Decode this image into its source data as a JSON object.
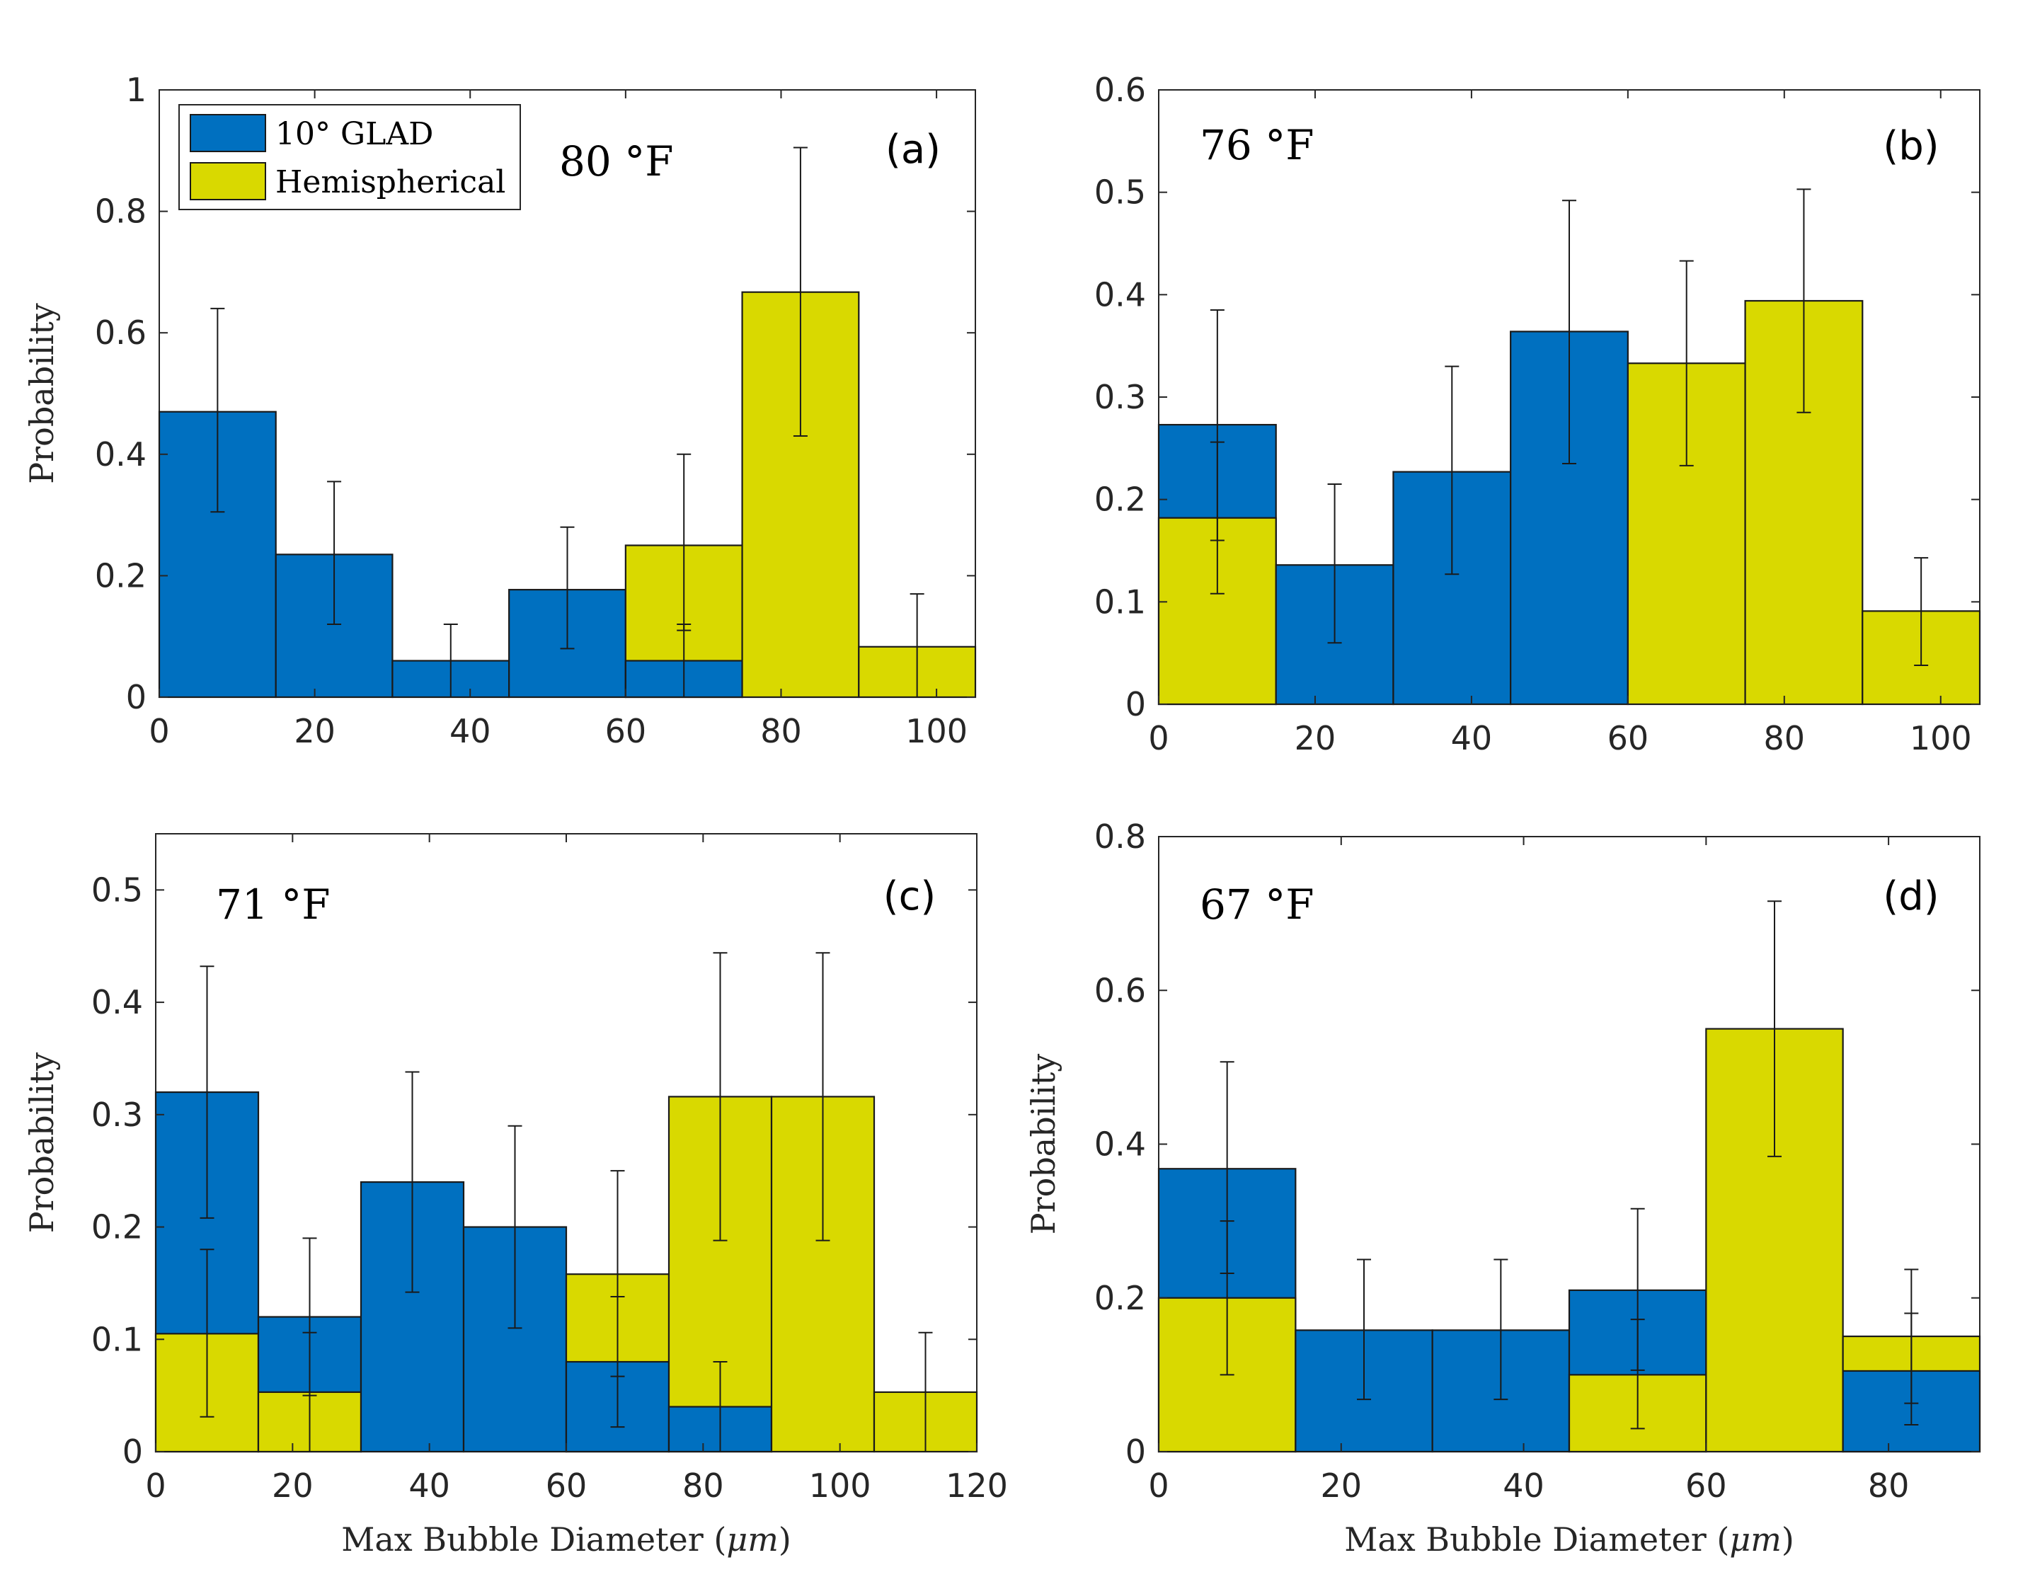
{
  "figure": {
    "series_names": [
      "10° GLAD",
      "Hemispherical"
    ],
    "colors": {
      "glad": "#0070C0",
      "hemi": "#D9D900"
    },
    "xlabel_prefix": "Max Bubble Diameter (",
    "xlabel_unit": "μm",
    "xlabel_suffix": ")",
    "ylabel": "Probability"
  },
  "chart_data": [
    {
      "type": "bar",
      "panel": "(a)",
      "temperature": "80 °F",
      "bin_width": 15,
      "xlim": [
        0,
        105
      ],
      "ylim": [
        0,
        1
      ],
      "xticks": [
        0,
        20,
        40,
        60,
        80,
        100
      ],
      "yticks": [
        "0",
        "0.2",
        "0.4",
        "0.6",
        "0.8",
        "1"
      ],
      "ytick_values": [
        0,
        0.2,
        0.4,
        0.6,
        0.8,
        1
      ],
      "legend": true,
      "series": [
        {
          "name": "10° GLAD",
          "bins": [
            0,
            15,
            30,
            45,
            60,
            75,
            90
          ],
          "values": [
            0.47,
            0.235,
            0.06,
            0.177,
            0.06,
            0,
            0
          ],
          "err_lo": [
            0.305,
            0.12,
            0,
            0.08,
            0,
            0,
            0
          ],
          "err_hi": [
            0.64,
            0.355,
            0.12,
            0.28,
            0.12,
            0,
            0
          ]
        },
        {
          "name": "Hemispherical",
          "bins": [
            0,
            15,
            30,
            45,
            60,
            75,
            90
          ],
          "values": [
            0,
            0,
            0,
            0,
            0.25,
            0.667,
            0.083
          ],
          "err_lo": [
            0,
            0,
            0,
            0,
            0.11,
            0.43,
            0
          ],
          "err_hi": [
            0,
            0,
            0,
            0,
            0.4,
            0.905,
            0.17
          ]
        }
      ]
    },
    {
      "type": "bar",
      "panel": "(b)",
      "temperature": "76 °F",
      "bin_width": 15,
      "xlim": [
        0,
        105
      ],
      "ylim": [
        0,
        0.6
      ],
      "xticks": [
        0,
        20,
        40,
        60,
        80,
        100
      ],
      "yticks": [
        "0",
        "0.1",
        "0.2",
        "0.3",
        "0.4",
        "0.5",
        "0.6"
      ],
      "ytick_values": [
        0,
        0.1,
        0.2,
        0.3,
        0.4,
        0.5,
        0.6
      ],
      "legend": false,
      "series": [
        {
          "name": "10° GLAD",
          "bins": [
            0,
            15,
            30,
            45,
            60,
            75,
            90
          ],
          "values": [
            0.273,
            0.136,
            0.227,
            0.364,
            0,
            0,
            0
          ],
          "err_lo": [
            0.16,
            0.06,
            0.127,
            0.235,
            0,
            0,
            0
          ],
          "err_hi": [
            0.385,
            0.215,
            0.33,
            0.492,
            0,
            0,
            0
          ]
        },
        {
          "name": "Hemispherical",
          "bins": [
            0,
            15,
            30,
            45,
            60,
            75,
            90
          ],
          "values": [
            0.182,
            0,
            0,
            0,
            0.333,
            0.394,
            0.091
          ],
          "err_lo": [
            0.108,
            0,
            0,
            0,
            0.233,
            0.285,
            0.038
          ],
          "err_hi": [
            0.256,
            0,
            0,
            0,
            0.433,
            0.503,
            0.143
          ]
        }
      ]
    },
    {
      "type": "bar",
      "panel": "(c)",
      "temperature": "71 °F",
      "bin_width": 15,
      "xlim": [
        0,
        120
      ],
      "ylim": [
        0,
        0.55
      ],
      "xticks": [
        0,
        20,
        40,
        60,
        80,
        100,
        120
      ],
      "yticks": [
        "0",
        "0.1",
        "0.2",
        "0.3",
        "0.4",
        "0.5"
      ],
      "ytick_values": [
        0,
        0.1,
        0.2,
        0.3,
        0.4,
        0.5
      ],
      "legend": false,
      "series": [
        {
          "name": "10° GLAD",
          "bins": [
            0,
            15,
            30,
            45,
            60,
            75,
            90,
            105
          ],
          "values": [
            0.32,
            0.12,
            0.24,
            0.2,
            0.08,
            0.04,
            0,
            0
          ],
          "err_lo": [
            0.208,
            0.05,
            0.142,
            0.11,
            0.022,
            0,
            0,
            0
          ],
          "err_hi": [
            0.432,
            0.19,
            0.338,
            0.29,
            0.138,
            0.08,
            0,
            0
          ]
        },
        {
          "name": "Hemispherical",
          "bins": [
            0,
            15,
            30,
            45,
            60,
            75,
            90,
            105
          ],
          "values": [
            0.105,
            0.053,
            0,
            0,
            0.158,
            0.316,
            0.316,
            0.053
          ],
          "err_lo": [
            0.031,
            0,
            0,
            0,
            0.067,
            0.188,
            0.188,
            0
          ],
          "err_hi": [
            0.18,
            0.106,
            0,
            0,
            0.25,
            0.444,
            0.444,
            0.106
          ]
        }
      ]
    },
    {
      "type": "bar",
      "panel": "(d)",
      "temperature": "67 °F",
      "bin_width": 15,
      "xlim": [
        0,
        90
      ],
      "ylim": [
        0,
        0.8
      ],
      "xticks": [
        0,
        20,
        40,
        60,
        80
      ],
      "yticks": [
        "0",
        "0.2",
        "0.4",
        "0.6",
        "0.8"
      ],
      "ytick_values": [
        0,
        0.2,
        0.4,
        0.6,
        0.8
      ],
      "legend": false,
      "series": [
        {
          "name": "10° GLAD",
          "bins": [
            0,
            15,
            30,
            45,
            60,
            75
          ],
          "values": [
            0.368,
            0.158,
            0.158,
            0.21,
            0,
            0.105
          ],
          "err_lo": [
            0.232,
            0.068,
            0.068,
            0.106,
            0,
            0.035
          ],
          "err_hi": [
            0.507,
            0.25,
            0.25,
            0.316,
            0,
            0.18
          ]
        },
        {
          "name": "Hemispherical",
          "bins": [
            0,
            15,
            30,
            45,
            60,
            75
          ],
          "values": [
            0.2,
            0,
            0,
            0.1,
            0.55,
            0.15
          ],
          "err_lo": [
            0.1,
            0,
            0,
            0.03,
            0.384,
            0.063
          ],
          "err_hi": [
            0.3,
            0,
            0,
            0.172,
            0.716,
            0.237
          ]
        }
      ]
    }
  ]
}
